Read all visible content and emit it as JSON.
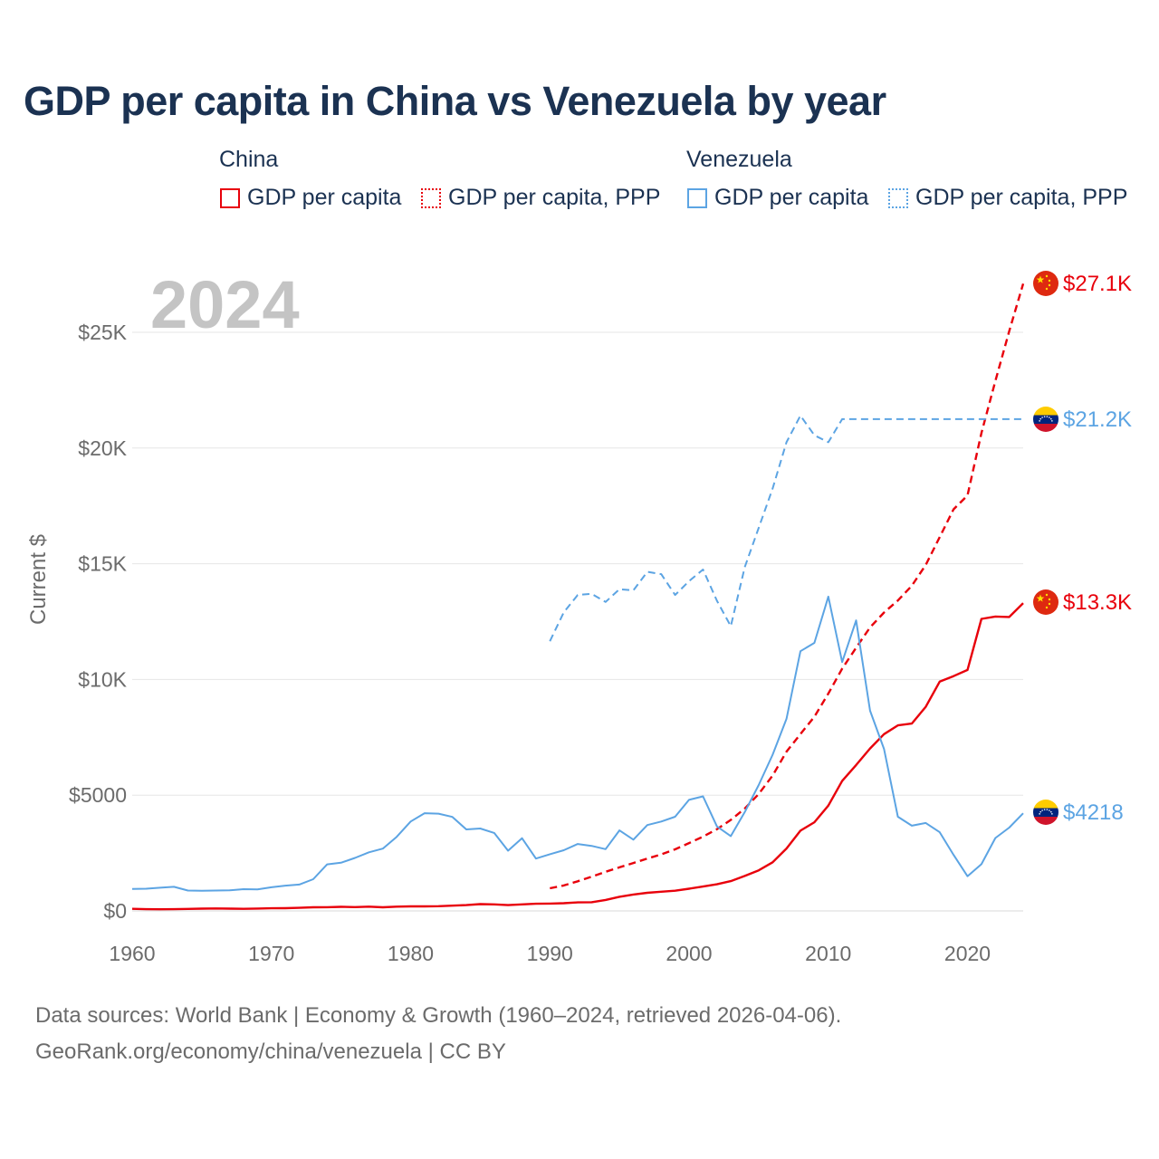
{
  "title": "GDP per capita in China vs Venezuela by year",
  "legend": {
    "china_title": "China",
    "venezuela_title": "Venezuela",
    "gdp_label": "GDP per capita",
    "ppp_label": "GDP per capita, PPP"
  },
  "year_overlay": "2024",
  "footer": {
    "line1": "Data sources: World Bank | Economy & Growth (1960–2024, retrieved 2026-04-06).",
    "line2": "GeoRank.org/economy/china/venezuela | CC BY"
  },
  "colors": {
    "china": "#e8000b",
    "venezuela": "#5ca4e3",
    "text": "#1b3252",
    "axis": "#6b6b6b",
    "grid": "#e6e6e6",
    "overlay": "#c4c4c4"
  },
  "chart_data": {
    "type": "line",
    "title": "GDP per capita in China vs Venezuela by year",
    "xlabel": "",
    "ylabel": "Current $",
    "xlim": [
      1960,
      2024
    ],
    "ylim": [
      0,
      27000
    ],
    "x_ticks": [
      1960,
      1970,
      1980,
      1990,
      2000,
      2010,
      2020
    ],
    "y_ticks": [
      {
        "value": 0,
        "label": "$0"
      },
      {
        "value": 5000,
        "label": "$5000"
      },
      {
        "value": 10000,
        "label": "$10K"
      },
      {
        "value": 15000,
        "label": "$15K"
      },
      {
        "value": 20000,
        "label": "$20K"
      },
      {
        "value": 25000,
        "label": "$25K"
      }
    ],
    "grid": true,
    "series": [
      {
        "key": "china_gdp",
        "name": "China GDP per capita",
        "color": "#e8000b",
        "style": "solid",
        "end_label": "$13.3K",
        "points": [
          [
            1960,
            90
          ],
          [
            1961,
            76
          ],
          [
            1962,
            71
          ],
          [
            1963,
            75
          ],
          [
            1964,
            85
          ],
          [
            1965,
            98
          ],
          [
            1966,
            104
          ],
          [
            1967,
            97
          ],
          [
            1968,
            91
          ],
          [
            1969,
            100
          ],
          [
            1970,
            113
          ],
          [
            1971,
            119
          ],
          [
            1972,
            132
          ],
          [
            1973,
            157
          ],
          [
            1974,
            160
          ],
          [
            1975,
            178
          ],
          [
            1976,
            165
          ],
          [
            1977,
            185
          ],
          [
            1978,
            156
          ],
          [
            1979,
            183
          ],
          [
            1980,
            195
          ],
          [
            1981,
            197
          ],
          [
            1982,
            203
          ],
          [
            1983,
            225
          ],
          [
            1984,
            250
          ],
          [
            1985,
            294
          ],
          [
            1986,
            281
          ],
          [
            1987,
            251
          ],
          [
            1988,
            283
          ],
          [
            1989,
            310
          ],
          [
            1990,
            318
          ],
          [
            1991,
            333
          ],
          [
            1992,
            366
          ],
          [
            1993,
            377
          ],
          [
            1994,
            473
          ],
          [
            1995,
            610
          ],
          [
            1996,
            709
          ],
          [
            1997,
            782
          ],
          [
            1998,
            829
          ],
          [
            1999,
            873
          ],
          [
            2000,
            959
          ],
          [
            2001,
            1053
          ],
          [
            2002,
            1149
          ],
          [
            2003,
            1289
          ],
          [
            2004,
            1509
          ],
          [
            2005,
            1753
          ],
          [
            2006,
            2099
          ],
          [
            2007,
            2694
          ],
          [
            2008,
            3468
          ],
          [
            2009,
            3832
          ],
          [
            2010,
            4550
          ],
          [
            2011,
            5618
          ],
          [
            2012,
            6301
          ],
          [
            2013,
            7020
          ],
          [
            2014,
            7636
          ],
          [
            2015,
            8016
          ],
          [
            2016,
            8094
          ],
          [
            2017,
            8817
          ],
          [
            2018,
            9905
          ],
          [
            2019,
            10144
          ],
          [
            2020,
            10409
          ],
          [
            2021,
            12618
          ],
          [
            2022,
            12720
          ],
          [
            2023,
            12700
          ],
          [
            2024,
            13300
          ]
        ]
      },
      {
        "key": "china_ppp",
        "name": "China GDP per capita, PPP",
        "color": "#e8000b",
        "style": "dashed",
        "end_label": "$27.1K",
        "points": [
          [
            1990,
            980
          ],
          [
            1991,
            1100
          ],
          [
            1992,
            1280
          ],
          [
            1993,
            1480
          ],
          [
            1994,
            1690
          ],
          [
            1995,
            1880
          ],
          [
            1996,
            2070
          ],
          [
            1997,
            2260
          ],
          [
            1998,
            2440
          ],
          [
            1999,
            2660
          ],
          [
            2000,
            2930
          ],
          [
            2001,
            3210
          ],
          [
            2002,
            3530
          ],
          [
            2003,
            3930
          ],
          [
            2004,
            4420
          ],
          [
            2005,
            5050
          ],
          [
            2006,
            5850
          ],
          [
            2007,
            6880
          ],
          [
            2008,
            7640
          ],
          [
            2009,
            8390
          ],
          [
            2010,
            9390
          ],
          [
            2011,
            10470
          ],
          [
            2012,
            11370
          ],
          [
            2013,
            12250
          ],
          [
            2014,
            12890
          ],
          [
            2015,
            13410
          ],
          [
            2016,
            14050
          ],
          [
            2017,
            14950
          ],
          [
            2018,
            16150
          ],
          [
            2019,
            17350
          ],
          [
            2020,
            17950
          ],
          [
            2021,
            20650
          ],
          [
            2022,
            22900
          ],
          [
            2023,
            25050
          ],
          [
            2024,
            27100
          ]
        ]
      },
      {
        "key": "ven_gdp",
        "name": "Venezuela GDP per capita",
        "color": "#5ca4e3",
        "style": "solid",
        "end_label": "$4218",
        "points": [
          [
            1960,
            950
          ],
          [
            1961,
            960
          ],
          [
            1962,
            1000
          ],
          [
            1963,
            1040
          ],
          [
            1964,
            880
          ],
          [
            1965,
            870
          ],
          [
            1966,
            880
          ],
          [
            1967,
            890
          ],
          [
            1968,
            940
          ],
          [
            1969,
            930
          ],
          [
            1970,
            1020
          ],
          [
            1971,
            1090
          ],
          [
            1972,
            1140
          ],
          [
            1973,
            1370
          ],
          [
            1974,
            2010
          ],
          [
            1975,
            2080
          ],
          [
            1976,
            2290
          ],
          [
            1977,
            2530
          ],
          [
            1978,
            2690
          ],
          [
            1979,
            3200
          ],
          [
            1980,
            3860
          ],
          [
            1981,
            4220
          ],
          [
            1982,
            4200
          ],
          [
            1983,
            4060
          ],
          [
            1984,
            3520
          ],
          [
            1985,
            3560
          ],
          [
            1986,
            3370
          ],
          [
            1987,
            2600
          ],
          [
            1988,
            3140
          ],
          [
            1989,
            2260
          ],
          [
            1990,
            2450
          ],
          [
            1991,
            2620
          ],
          [
            1992,
            2890
          ],
          [
            1993,
            2810
          ],
          [
            1994,
            2670
          ],
          [
            1995,
            3480
          ],
          [
            1996,
            3080
          ],
          [
            1997,
            3710
          ],
          [
            1998,
            3860
          ],
          [
            1999,
            4070
          ],
          [
            2000,
            4800
          ],
          [
            2001,
            4950
          ],
          [
            2002,
            3650
          ],
          [
            2003,
            3230
          ],
          [
            2004,
            4270
          ],
          [
            2005,
            5440
          ],
          [
            2006,
            6750
          ],
          [
            2007,
            8300
          ],
          [
            2008,
            11220
          ],
          [
            2009,
            11580
          ],
          [
            2010,
            13580
          ],
          [
            2011,
            10750
          ],
          [
            2012,
            12550
          ],
          [
            2013,
            8650
          ],
          [
            2014,
            7000
          ],
          [
            2015,
            4070
          ],
          [
            2016,
            3680
          ],
          [
            2017,
            3800
          ],
          [
            2018,
            3400
          ],
          [
            2019,
            2420
          ],
          [
            2020,
            1500
          ],
          [
            2021,
            2020
          ],
          [
            2022,
            3150
          ],
          [
            2023,
            3600
          ],
          [
            2024,
            4218
          ]
        ]
      },
      {
        "key": "ven_ppp",
        "name": "Venezuela GDP per capita, PPP",
        "color": "#5ca4e3",
        "style": "dashed",
        "end_label": "$21.2K",
        "points": [
          [
            1990,
            11650
          ],
          [
            1991,
            12900
          ],
          [
            1992,
            13650
          ],
          [
            1993,
            13700
          ],
          [
            1994,
            13350
          ],
          [
            1995,
            13900
          ],
          [
            1996,
            13850
          ],
          [
            1997,
            14650
          ],
          [
            1998,
            14550
          ],
          [
            1999,
            13650
          ],
          [
            2000,
            14250
          ],
          [
            2001,
            14750
          ],
          [
            2002,
            13400
          ],
          [
            2003,
            12300
          ],
          [
            2004,
            14850
          ],
          [
            2005,
            16550
          ],
          [
            2006,
            18250
          ],
          [
            2007,
            20250
          ],
          [
            2008,
            21400
          ],
          [
            2009,
            20550
          ],
          [
            2010,
            20250
          ],
          [
            2011,
            21250
          ],
          [
            2012,
            21250
          ],
          [
            2013,
            21250
          ],
          [
            2014,
            21250
          ],
          [
            2015,
            21250
          ],
          [
            2016,
            21250
          ],
          [
            2017,
            21250
          ],
          [
            2018,
            21250
          ],
          [
            2019,
            21250
          ],
          [
            2020,
            21250
          ],
          [
            2021,
            21250
          ],
          [
            2022,
            21250
          ],
          [
            2023,
            21250
          ],
          [
            2024,
            21250
          ]
        ]
      }
    ]
  }
}
